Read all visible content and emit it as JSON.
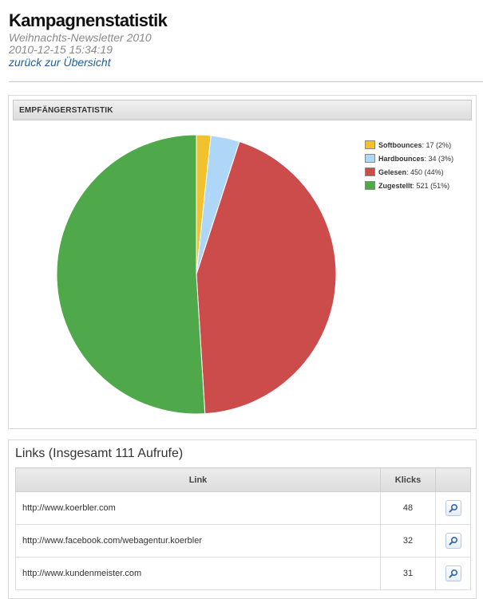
{
  "header": {
    "title": "Kampagnenstatistik",
    "newsletter": "Weihnachts-Newsletter 2010",
    "datetime": "2010-12-15 15:34:19",
    "back_link": "zurück zur Übersicht"
  },
  "recipients_panel": {
    "title": "EMPFÄNGERSTATISTIK"
  },
  "chart_data": {
    "type": "pie",
    "title": "",
    "series": [
      {
        "name": "Softbounces",
        "value": 17,
        "percent": "2%",
        "color": "#f2c12e"
      },
      {
        "name": "Hardbounces",
        "value": 34,
        "percent": "3%",
        "color": "#aed6f7"
      },
      {
        "name": "Gelesen",
        "value": 450,
        "percent": "44%",
        "color": "#cc4b4b"
      },
      {
        "name": "Zugestellt",
        "value": 521,
        "percent": "51%",
        "color": "#4fa84a"
      }
    ],
    "legend_placement": "top-right"
  },
  "links_panel": {
    "title": "Links (Insgesamt 111 Aufrufe)",
    "columns": {
      "link": "Link",
      "clicks": "Klicks"
    },
    "rows": [
      {
        "url": "http://www.koerbler.com",
        "clicks": "48"
      },
      {
        "url": "http://www.facebook.com/webagentur.koerbler",
        "clicks": "32"
      },
      {
        "url": "http://www.kundenmeister.com",
        "clicks": "31"
      }
    ],
    "detail_icon": "magnifier-icon"
  }
}
